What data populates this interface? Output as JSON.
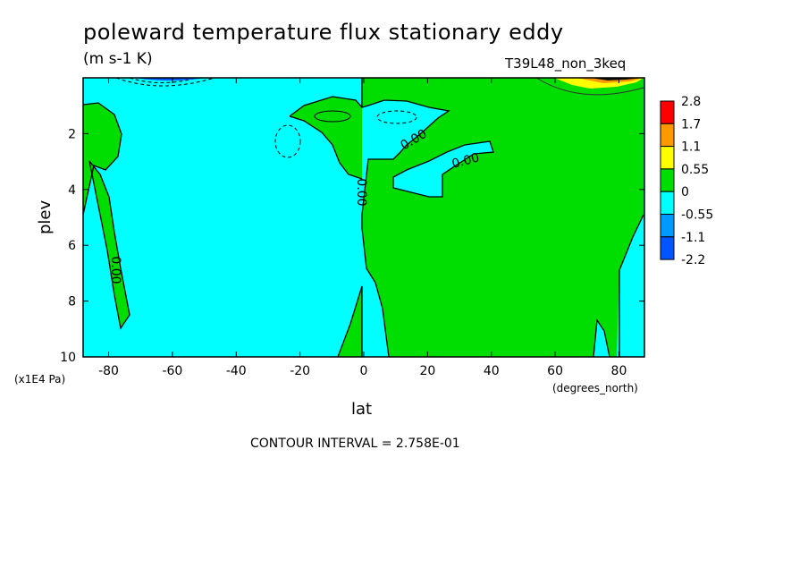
{
  "title": "poleward temperature flux stationary eddy",
  "units": "(m s-1 K)",
  "run_label": "T39L48_non_3keq",
  "contour_interval": "CONTOUR INTERVAL = 2.758E-01",
  "chart_data": {
    "type": "contour",
    "xlabel": "lat",
    "ylabel": "plev",
    "x_units": "(degrees_north)",
    "y_units": "(x1E4 Pa)",
    "xlim": [
      -88,
      88
    ],
    "ylim": [
      0,
      10
    ],
    "y_inverted": true,
    "x_ticks": [
      -80,
      -60,
      -40,
      -20,
      0,
      20,
      40,
      60,
      80
    ],
    "y_ticks": [
      2,
      4,
      6,
      8,
      10
    ],
    "contour_labels": [
      "0.00",
      "0.00",
      "0.00",
      "0.00"
    ],
    "colorbar": {
      "levels": [
        "2.8",
        "1.7",
        "1.1",
        "0.55",
        "0",
        "-0.55",
        "-1.1",
        "-2.2"
      ],
      "colors": [
        "#ff0000",
        "#ff9900",
        "#ffff00",
        "#00dd00",
        "#00ffff",
        "#0099ff",
        "#0055ff"
      ]
    },
    "regions": [
      {
        "sign": "positive",
        "color": "#00dd00",
        "description": "Northern Hemisphere and equatorial band"
      },
      {
        "sign": "negative",
        "color": "#00ffff",
        "description": "Southern Hemisphere extratropics"
      }
    ]
  }
}
